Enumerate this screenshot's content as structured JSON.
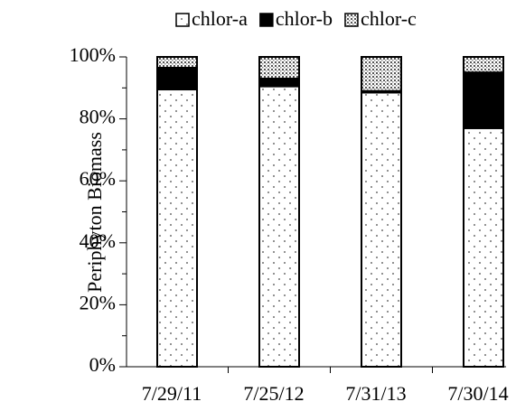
{
  "chart_data": {
    "type": "stacked_bar",
    "y_label": "Periphyton Biomass",
    "categories": [
      "7/29/11",
      "7/25/12",
      "7/31/13",
      "7/30/14"
    ],
    "series": [
      {
        "name": "chlor-a",
        "color": "#ffffff",
        "pattern": "sparse-dots",
        "values": [
          89.5,
          90.5,
          88.5,
          77
        ]
      },
      {
        "name": "chlor-b",
        "color": "#000000",
        "pattern": "solid",
        "values": [
          7,
          2.5,
          0.5,
          18
        ]
      },
      {
        "name": "chlor-c",
        "color": "#ffffff",
        "pattern": "dense-dots",
        "values": [
          3.5,
          7,
          11,
          5
        ]
      }
    ],
    "ylim": [
      0,
      100
    ],
    "yticks": [
      {
        "value": 0,
        "label": "0%"
      },
      {
        "value": 20,
        "label": "20%"
      },
      {
        "value": 40,
        "label": "40%"
      },
      {
        "value": 60,
        "label": "60%"
      },
      {
        "value": 80,
        "label": "80%"
      },
      {
        "value": 100,
        "label": "100%"
      }
    ],
    "legend": "top"
  }
}
